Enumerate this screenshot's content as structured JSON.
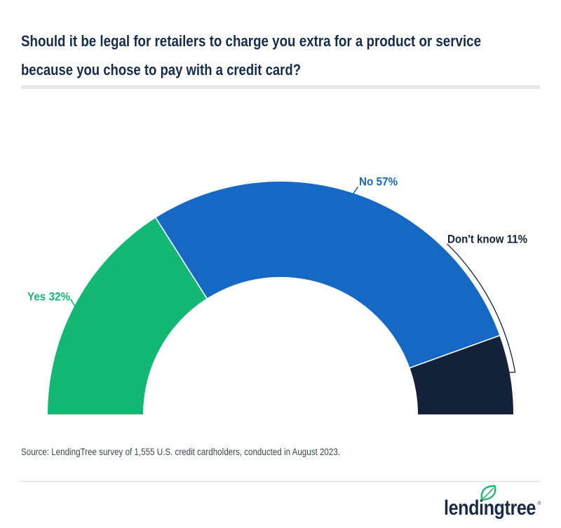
{
  "title": {
    "line1": "Should it be legal for retailers to charge you extra for a product or service",
    "line2": "because you chose to pay with a credit card?"
  },
  "chart_data": {
    "type": "pie",
    "variant": "semicircle-donut",
    "total_degrees": 180,
    "segments": [
      {
        "label": "Yes",
        "value": 32,
        "display": "Yes 32%",
        "color": "#12b873"
      },
      {
        "label": "No",
        "value": 57,
        "display": "No 57%",
        "color": "#1568c4"
      },
      {
        "label": "Don't know",
        "value": 11,
        "display": "Don't know 11%",
        "color": "#132239"
      }
    ],
    "legend_position": "outside-callouts"
  },
  "source": {
    "text": "Source: LendingTree survey of 1,555 U.S. credit cardholders, conducted in August 2023."
  },
  "branding": {
    "logo_text": "lendingtree",
    "registered_mark": "®",
    "logo_text_color": "#1b2b45",
    "leaf_color": "#25b56c"
  },
  "colors": {
    "title_text": "#152d49",
    "source_text": "#394551",
    "divider_top": "#e8e8e8",
    "divider_bottom": "#d9d9d9",
    "background": "#ffffff"
  }
}
